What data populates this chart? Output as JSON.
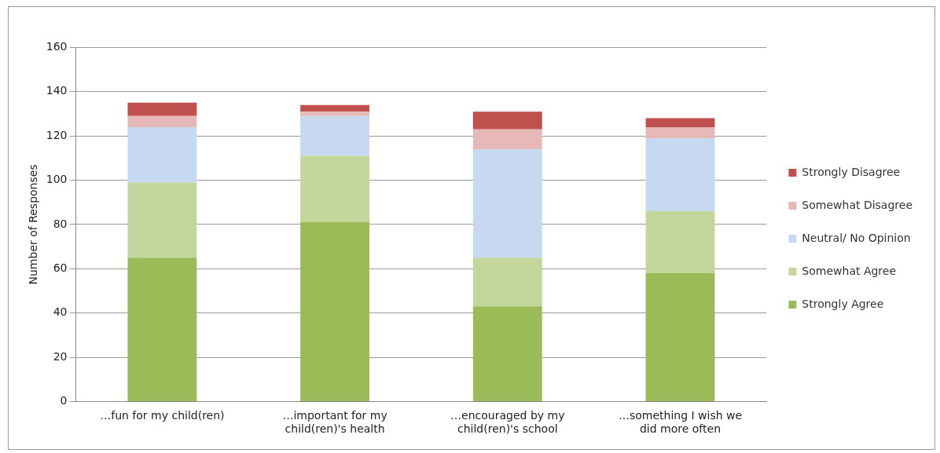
{
  "chart_data": {
    "type": "bar",
    "stacked": true,
    "ylabel": "Number of Responses",
    "categories": [
      "…fun for my child(ren)",
      "…important for my child(ren)'s health",
      "…encouraged by my child(ren)'s school",
      "…something I wish we did more often"
    ],
    "series": [
      {
        "name": "Strongly Agree",
        "color": "#9bbb59",
        "values": [
          65,
          81,
          43,
          58
        ]
      },
      {
        "name": "Somewhat Agree",
        "color": "#c3d69b",
        "values": [
          34,
          30,
          22,
          28
        ]
      },
      {
        "name": "Neutral/ No Opinion",
        "color": "#c6d9f1",
        "values": [
          25,
          18,
          49,
          33
        ]
      },
      {
        "name": "Somewhat Disagree",
        "color": "#e6b9b8",
        "values": [
          5,
          2,
          9,
          5
        ]
      },
      {
        "name": "Strongly Disagree",
        "color": "#c0504d",
        "values": [
          6,
          3,
          8,
          4
        ]
      }
    ],
    "ylim": [
      0,
      160
    ],
    "yticks": [
      0,
      20,
      40,
      60,
      80,
      100,
      120,
      140,
      160
    ],
    "grid": "y",
    "legend": "right"
  }
}
